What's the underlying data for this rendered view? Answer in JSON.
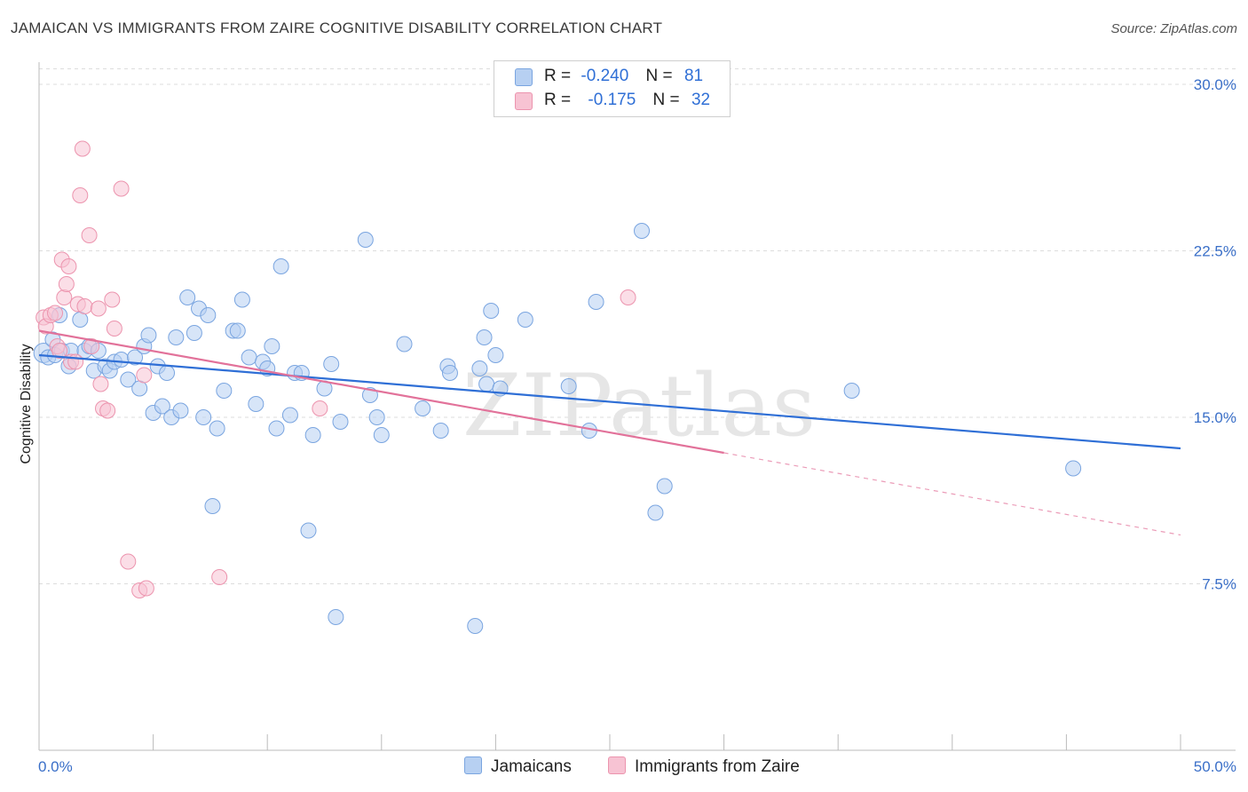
{
  "title": "JAMAICAN VS IMMIGRANTS FROM ZAIRE COGNITIVE DISABILITY CORRELATION CHART",
  "source": "Source: ZipAtlas.com",
  "watermark": "ZIPatlas",
  "legend": {
    "rows": [
      {
        "r_label": "R =",
        "r_value": "-0.240",
        "n_label": "N =",
        "n_value": "81",
        "color": "#aecbf0"
      },
      {
        "r_label": "R =",
        "r_value": "-0.175",
        "n_label": "N =",
        "n_value": "32",
        "color": "#f6bccd"
      }
    ]
  },
  "bottom_legend": {
    "jamaicans": "Jamaicans",
    "zaire": "Immigrants from Zaire"
  },
  "colors": {
    "blue_fill": "#b7d0f2",
    "blue_stroke": "#7aa5e0",
    "blue_line": "#2f6fd6",
    "pink_fill": "#f7c3d3",
    "pink_stroke": "#ec94ae",
    "pink_line": "#e2729a",
    "tick_text": "#3a6fc8",
    "grid": "#dddddd"
  },
  "chart_data": {
    "type": "scatter",
    "title": "JAMAICAN VS IMMIGRANTS FROM ZAIRE COGNITIVE DISABILITY CORRELATION CHART",
    "xlabel": "",
    "ylabel": "Cognitive Disability",
    "xlim": [
      0,
      50
    ],
    "ylim": [
      0,
      31
    ],
    "x_tick_labels": [
      "0.0%",
      "50.0%"
    ],
    "y_ticks": [
      7.5,
      15.0,
      22.5,
      30.0
    ],
    "y_tick_labels": [
      "7.5%",
      "15.0%",
      "22.5%",
      "30.0%"
    ],
    "grid": true,
    "legend_placement": "top-center",
    "series": [
      {
        "name": "Jamaicans",
        "points": [
          [
            0.2,
            17.9
          ],
          [
            0.4,
            17.7
          ],
          [
            0.6,
            18.5
          ],
          [
            0.7,
            17.8
          ],
          [
            0.9,
            19.6
          ],
          [
            1.0,
            18.0
          ],
          [
            1.3,
            17.3
          ],
          [
            1.4,
            18.0
          ],
          [
            1.8,
            19.4
          ],
          [
            2.0,
            18.0
          ],
          [
            2.2,
            18.2
          ],
          [
            2.4,
            17.1
          ],
          [
            2.6,
            18.0
          ],
          [
            2.9,
            17.3
          ],
          [
            3.1,
            17.1
          ],
          [
            3.3,
            17.5
          ],
          [
            3.6,
            17.6
          ],
          [
            3.9,
            16.7
          ],
          [
            4.2,
            17.7
          ],
          [
            4.4,
            16.3
          ],
          [
            4.6,
            18.2
          ],
          [
            4.8,
            18.7
          ],
          [
            5.0,
            15.2
          ],
          [
            5.2,
            17.3
          ],
          [
            5.4,
            15.5
          ],
          [
            5.6,
            17.0
          ],
          [
            5.8,
            15.0
          ],
          [
            6.0,
            18.6
          ],
          [
            6.2,
            15.3
          ],
          [
            6.5,
            20.4
          ],
          [
            6.8,
            18.8
          ],
          [
            7.0,
            19.9
          ],
          [
            7.2,
            15.0
          ],
          [
            7.4,
            19.6
          ],
          [
            7.8,
            14.5
          ],
          [
            7.6,
            11.0
          ],
          [
            8.1,
            16.2
          ],
          [
            8.5,
            18.9
          ],
          [
            8.7,
            18.9
          ],
          [
            8.9,
            20.3
          ],
          [
            9.2,
            17.7
          ],
          [
            9.5,
            15.6
          ],
          [
            9.8,
            17.5
          ],
          [
            10.0,
            17.2
          ],
          [
            10.2,
            18.2
          ],
          [
            10.4,
            14.5
          ],
          [
            10.6,
            21.8
          ],
          [
            11.0,
            15.1
          ],
          [
            11.2,
            17.0
          ],
          [
            11.5,
            17.0
          ],
          [
            11.8,
            9.9
          ],
          [
            12.0,
            14.2
          ],
          [
            12.5,
            16.3
          ],
          [
            12.8,
            17.4
          ],
          [
            13.0,
            6.0
          ],
          [
            13.2,
            14.8
          ],
          [
            14.3,
            23.0
          ],
          [
            14.5,
            16.0
          ],
          [
            14.8,
            15.0
          ],
          [
            15.0,
            14.2
          ],
          [
            16.0,
            18.3
          ],
          [
            16.8,
            15.4
          ],
          [
            17.6,
            14.4
          ],
          [
            17.9,
            17.3
          ],
          [
            18.0,
            17.0
          ],
          [
            19.1,
            5.6
          ],
          [
            19.3,
            17.2
          ],
          [
            19.5,
            18.6
          ],
          [
            19.6,
            16.5
          ],
          [
            19.8,
            19.8
          ],
          [
            20.0,
            17.8
          ],
          [
            20.2,
            16.3
          ],
          [
            21.3,
            19.4
          ],
          [
            23.2,
            16.4
          ],
          [
            24.1,
            14.4
          ],
          [
            24.4,
            20.2
          ],
          [
            26.4,
            23.4
          ],
          [
            27.0,
            10.7
          ],
          [
            27.4,
            11.9
          ],
          [
            35.6,
            16.2
          ],
          [
            45.3,
            12.7
          ]
        ],
        "trend": {
          "x": [
            0,
            50
          ],
          "y": [
            17.8,
            13.6
          ]
        }
      },
      {
        "name": "Immigrants from Zaire",
        "points": [
          [
            0.2,
            19.5
          ],
          [
            0.3,
            19.1
          ],
          [
            0.5,
            19.6
          ],
          [
            0.7,
            19.7
          ],
          [
            0.8,
            18.2
          ],
          [
            0.9,
            18.0
          ],
          [
            1.0,
            22.1
          ],
          [
            1.1,
            20.4
          ],
          [
            1.2,
            21.0
          ],
          [
            1.3,
            21.8
          ],
          [
            1.4,
            17.5
          ],
          [
            1.6,
            17.5
          ],
          [
            1.7,
            20.1
          ],
          [
            1.8,
            25.0
          ],
          [
            1.9,
            27.1
          ],
          [
            2.0,
            20.0
          ],
          [
            2.2,
            23.2
          ],
          [
            2.3,
            18.2
          ],
          [
            2.6,
            19.9
          ],
          [
            2.7,
            16.5
          ],
          [
            2.8,
            15.4
          ],
          [
            3.0,
            15.3
          ],
          [
            3.2,
            20.3
          ],
          [
            3.3,
            19.0
          ],
          [
            3.6,
            25.3
          ],
          [
            3.9,
            8.5
          ],
          [
            4.4,
            7.2
          ],
          [
            4.6,
            16.9
          ],
          [
            4.7,
            7.3
          ],
          [
            7.9,
            7.8
          ],
          [
            12.3,
            15.4
          ],
          [
            25.8,
            20.4
          ]
        ],
        "trend_solid": {
          "x": [
            0,
            30
          ],
          "y": [
            18.9,
            13.4
          ]
        },
        "trend_dashed": {
          "x": [
            30,
            50
          ],
          "y": [
            13.4,
            9.7
          ]
        }
      }
    ]
  }
}
